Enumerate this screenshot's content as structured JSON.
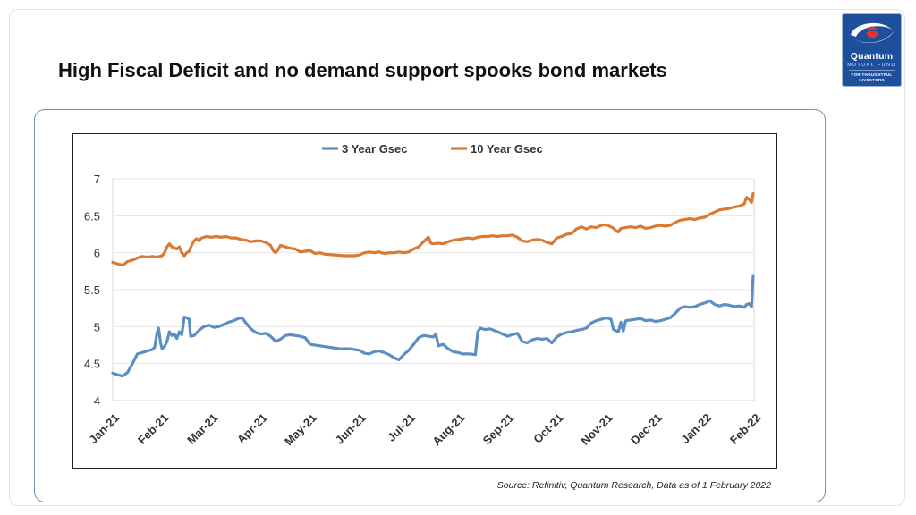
{
  "slide": {
    "title": "High Fiscal Deficit and no demand support spooks bond markets",
    "source": "Source: Refinitiv, Quantum Research, Data as of 1 February 2022"
  },
  "logo": {
    "name": "Quantum",
    "subtitle": "MUTUAL FUND",
    "tagline_line1": "FOR THOUGHTFUL",
    "tagline_line2": "INVESTORS",
    "colors": {
      "background": "#1e4f9c",
      "accent": "#e0352b"
    }
  },
  "chart_data": {
    "type": "line",
    "title": "",
    "xlabel": "",
    "ylabel": "",
    "ylim": [
      4,
      7
    ],
    "yticks": [
      "4",
      "4.5",
      "5",
      "5.5",
      "6",
      "6.5",
      "7"
    ],
    "grid": "horizontal",
    "legend_position": "top-center",
    "x_tick_labels": [
      "Jan-21",
      "Feb-21",
      "Mar-21",
      "Apr-21",
      "May-21",
      "Jun-21",
      "Jul-21",
      "Aug-21",
      "Sep-21",
      "Oct-21",
      "Nov-21",
      "Dec-21",
      "Jan-22",
      "Feb-22"
    ],
    "x_unit": "months since Jan-21",
    "series": [
      {
        "name": "3 Year Gsec",
        "color": "#5b8fc4",
        "points": [
          [
            0.0,
            4.37
          ],
          [
            0.1,
            4.35
          ],
          [
            0.2,
            4.33
          ],
          [
            0.3,
            4.38
          ],
          [
            0.4,
            4.5
          ],
          [
            0.5,
            4.63
          ],
          [
            0.6,
            4.65
          ],
          [
            0.7,
            4.67
          ],
          [
            0.8,
            4.69
          ],
          [
            0.85,
            4.72
          ],
          [
            0.9,
            4.92
          ],
          [
            0.93,
            4.98
          ],
          [
            0.97,
            4.78
          ],
          [
            1.0,
            4.7
          ],
          [
            1.05,
            4.73
          ],
          [
            1.1,
            4.8
          ],
          [
            1.15,
            4.93
          ],
          [
            1.2,
            4.88
          ],
          [
            1.25,
            4.9
          ],
          [
            1.3,
            4.84
          ],
          [
            1.35,
            4.93
          ],
          [
            1.4,
            4.89
          ],
          [
            1.45,
            5.13
          ],
          [
            1.5,
            5.12
          ],
          [
            1.55,
            5.1
          ],
          [
            1.58,
            4.87
          ],
          [
            1.65,
            4.88
          ],
          [
            1.75,
            4.95
          ],
          [
            1.85,
            5.0
          ],
          [
            1.95,
            5.02
          ],
          [
            2.05,
            4.99
          ],
          [
            2.15,
            5.0
          ],
          [
            2.25,
            5.03
          ],
          [
            2.35,
            5.06
          ],
          [
            2.45,
            5.08
          ],
          [
            2.55,
            5.11
          ],
          [
            2.62,
            5.12
          ],
          [
            2.7,
            5.05
          ],
          [
            2.8,
            4.97
          ],
          [
            2.9,
            4.92
          ],
          [
            3.0,
            4.9
          ],
          [
            3.1,
            4.91
          ],
          [
            3.2,
            4.87
          ],
          [
            3.3,
            4.8
          ],
          [
            3.4,
            4.83
          ],
          [
            3.5,
            4.88
          ],
          [
            3.6,
            4.89
          ],
          [
            3.7,
            4.88
          ],
          [
            3.8,
            4.87
          ],
          [
            3.9,
            4.85
          ],
          [
            4.0,
            4.76
          ],
          [
            4.2,
            4.74
          ],
          [
            4.4,
            4.72
          ],
          [
            4.6,
            4.7
          ],
          [
            4.8,
            4.7
          ],
          [
            5.0,
            4.68
          ],
          [
            5.1,
            4.64
          ],
          [
            5.2,
            4.63
          ],
          [
            5.3,
            4.66
          ],
          [
            5.4,
            4.67
          ],
          [
            5.5,
            4.65
          ],
          [
            5.6,
            4.62
          ],
          [
            5.7,
            4.58
          ],
          [
            5.8,
            4.55
          ],
          [
            5.9,
            4.62
          ],
          [
            6.0,
            4.68
          ],
          [
            6.1,
            4.76
          ],
          [
            6.2,
            4.85
          ],
          [
            6.3,
            4.88
          ],
          [
            6.4,
            4.87
          ],
          [
            6.5,
            4.86
          ],
          [
            6.55,
            4.9
          ],
          [
            6.6,
            4.74
          ],
          [
            6.7,
            4.76
          ],
          [
            6.8,
            4.7
          ],
          [
            6.9,
            4.66
          ],
          [
            7.0,
            4.65
          ],
          [
            7.1,
            4.63
          ],
          [
            7.25,
            4.63
          ],
          [
            7.35,
            4.62
          ],
          [
            7.4,
            4.93
          ],
          [
            7.45,
            4.98
          ],
          [
            7.55,
            4.96
          ],
          [
            7.65,
            4.97
          ],
          [
            7.8,
            4.93
          ],
          [
            7.9,
            4.9
          ],
          [
            8.0,
            4.87
          ],
          [
            8.1,
            4.89
          ],
          [
            8.2,
            4.91
          ],
          [
            8.3,
            4.8
          ],
          [
            8.4,
            4.78
          ],
          [
            8.5,
            4.82
          ],
          [
            8.6,
            4.84
          ],
          [
            8.7,
            4.83
          ],
          [
            8.8,
            4.84
          ],
          [
            8.9,
            4.78
          ],
          [
            9.0,
            4.86
          ],
          [
            9.1,
            4.9
          ],
          [
            9.2,
            4.92
          ],
          [
            9.3,
            4.93
          ],
          [
            9.4,
            4.95
          ],
          [
            9.5,
            4.96
          ],
          [
            9.6,
            4.98
          ],
          [
            9.7,
            5.05
          ],
          [
            9.8,
            5.08
          ],
          [
            9.9,
            5.1
          ],
          [
            10.0,
            5.12
          ],
          [
            10.1,
            5.1
          ],
          [
            10.15,
            4.96
          ],
          [
            10.25,
            4.93
          ],
          [
            10.3,
            5.06
          ],
          [
            10.35,
            4.94
          ],
          [
            10.4,
            5.08
          ],
          [
            10.5,
            5.09
          ],
          [
            10.6,
            5.1
          ],
          [
            10.7,
            5.11
          ],
          [
            10.8,
            5.08
          ],
          [
            10.9,
            5.09
          ],
          [
            11.0,
            5.07
          ],
          [
            11.1,
            5.08
          ],
          [
            11.2,
            5.1
          ],
          [
            11.3,
            5.12
          ],
          [
            11.4,
            5.18
          ],
          [
            11.5,
            5.25
          ],
          [
            11.6,
            5.27
          ],
          [
            11.7,
            5.26
          ],
          [
            11.8,
            5.27
          ],
          [
            11.9,
            5.3
          ],
          [
            12.0,
            5.32
          ],
          [
            12.1,
            5.35
          ],
          [
            12.2,
            5.3
          ],
          [
            12.3,
            5.28
          ],
          [
            12.4,
            5.3
          ],
          [
            12.5,
            5.29
          ],
          [
            12.6,
            5.27
          ],
          [
            12.7,
            5.28
          ],
          [
            12.8,
            5.26
          ],
          [
            12.85,
            5.3
          ],
          [
            12.9,
            5.31
          ],
          [
            12.95,
            5.27
          ],
          [
            12.98,
            5.68
          ]
        ]
      },
      {
        "name": "10 Year Gsec",
        "color": "#d97a33",
        "points": [
          [
            0.0,
            5.87
          ],
          [
            0.1,
            5.85
          ],
          [
            0.2,
            5.83
          ],
          [
            0.3,
            5.88
          ],
          [
            0.4,
            5.9
          ],
          [
            0.5,
            5.93
          ],
          [
            0.6,
            5.95
          ],
          [
            0.7,
            5.94
          ],
          [
            0.8,
            5.95
          ],
          [
            0.9,
            5.94
          ],
          [
            1.0,
            5.96
          ],
          [
            1.05,
            6.0
          ],
          [
            1.1,
            6.08
          ],
          [
            1.15,
            6.12
          ],
          [
            1.2,
            6.08
          ],
          [
            1.3,
            6.05
          ],
          [
            1.35,
            6.08
          ],
          [
            1.4,
            6.0
          ],
          [
            1.45,
            5.96
          ],
          [
            1.5,
            6.0
          ],
          [
            1.55,
            6.02
          ],
          [
            1.6,
            6.1
          ],
          [
            1.65,
            6.16
          ],
          [
            1.7,
            6.19
          ],
          [
            1.75,
            6.16
          ],
          [
            1.8,
            6.2
          ],
          [
            1.9,
            6.22
          ],
          [
            2.0,
            6.21
          ],
          [
            2.1,
            6.22
          ],
          [
            2.2,
            6.21
          ],
          [
            2.3,
            6.22
          ],
          [
            2.4,
            6.2
          ],
          [
            2.5,
            6.2
          ],
          [
            2.6,
            6.18
          ],
          [
            2.7,
            6.17
          ],
          [
            2.8,
            6.15
          ],
          [
            2.9,
            6.16
          ],
          [
            3.0,
            6.16
          ],
          [
            3.1,
            6.14
          ],
          [
            3.2,
            6.1
          ],
          [
            3.25,
            6.03
          ],
          [
            3.3,
            6.0
          ],
          [
            3.35,
            6.04
          ],
          [
            3.4,
            6.1
          ],
          [
            3.5,
            6.08
          ],
          [
            3.6,
            6.06
          ],
          [
            3.7,
            6.05
          ],
          [
            3.8,
            6.01
          ],
          [
            3.9,
            6.02
          ],
          [
            4.0,
            6.03
          ],
          [
            4.1,
            5.99
          ],
          [
            4.2,
            6.0
          ],
          [
            4.3,
            5.98
          ],
          [
            4.5,
            5.97
          ],
          [
            4.7,
            5.96
          ],
          [
            4.9,
            5.96
          ],
          [
            5.0,
            5.97
          ],
          [
            5.1,
            6.0
          ],
          [
            5.2,
            6.01
          ],
          [
            5.3,
            6.0
          ],
          [
            5.4,
            6.01
          ],
          [
            5.5,
            5.99
          ],
          [
            5.6,
            6.0
          ],
          [
            5.7,
            6.0
          ],
          [
            5.8,
            6.01
          ],
          [
            5.9,
            6.0
          ],
          [
            6.0,
            6.01
          ],
          [
            6.1,
            6.05
          ],
          [
            6.2,
            6.08
          ],
          [
            6.3,
            6.15
          ],
          [
            6.35,
            6.18
          ],
          [
            6.4,
            6.21
          ],
          [
            6.45,
            6.13
          ],
          [
            6.5,
            6.12
          ],
          [
            6.6,
            6.13
          ],
          [
            6.7,
            6.12
          ],
          [
            6.8,
            6.15
          ],
          [
            6.9,
            6.17
          ],
          [
            7.0,
            6.18
          ],
          [
            7.1,
            6.19
          ],
          [
            7.2,
            6.2
          ],
          [
            7.3,
            6.19
          ],
          [
            7.4,
            6.21
          ],
          [
            7.5,
            6.22
          ],
          [
            7.6,
            6.22
          ],
          [
            7.7,
            6.23
          ],
          [
            7.8,
            6.22
          ],
          [
            7.9,
            6.23
          ],
          [
            8.0,
            6.23
          ],
          [
            8.1,
            6.24
          ],
          [
            8.2,
            6.21
          ],
          [
            8.3,
            6.16
          ],
          [
            8.4,
            6.15
          ],
          [
            8.5,
            6.17
          ],
          [
            8.6,
            6.18
          ],
          [
            8.7,
            6.17
          ],
          [
            8.8,
            6.14
          ],
          [
            8.9,
            6.12
          ],
          [
            9.0,
            6.2
          ],
          [
            9.1,
            6.22
          ],
          [
            9.2,
            6.25
          ],
          [
            9.3,
            6.26
          ],
          [
            9.4,
            6.32
          ],
          [
            9.5,
            6.35
          ],
          [
            9.6,
            6.32
          ],
          [
            9.7,
            6.35
          ],
          [
            9.8,
            6.34
          ],
          [
            9.9,
            6.37
          ],
          [
            10.0,
            6.38
          ],
          [
            10.1,
            6.35
          ],
          [
            10.15,
            6.33
          ],
          [
            10.2,
            6.3
          ],
          [
            10.25,
            6.28
          ],
          [
            10.3,
            6.33
          ],
          [
            10.4,
            6.34
          ],
          [
            10.5,
            6.35
          ],
          [
            10.6,
            6.34
          ],
          [
            10.7,
            6.36
          ],
          [
            10.8,
            6.33
          ],
          [
            10.9,
            6.34
          ],
          [
            11.0,
            6.36
          ],
          [
            11.1,
            6.37
          ],
          [
            11.2,
            6.36
          ],
          [
            11.3,
            6.37
          ],
          [
            11.4,
            6.41
          ],
          [
            11.5,
            6.44
          ],
          [
            11.6,
            6.45
          ],
          [
            11.7,
            6.46
          ],
          [
            11.8,
            6.45
          ],
          [
            11.9,
            6.47
          ],
          [
            12.0,
            6.48
          ],
          [
            12.1,
            6.52
          ],
          [
            12.2,
            6.55
          ],
          [
            12.3,
            6.58
          ],
          [
            12.4,
            6.59
          ],
          [
            12.5,
            6.6
          ],
          [
            12.6,
            6.62
          ],
          [
            12.7,
            6.63
          ],
          [
            12.8,
            6.66
          ],
          [
            12.85,
            6.75
          ],
          [
            12.9,
            6.72
          ],
          [
            12.95,
            6.68
          ],
          [
            12.98,
            6.8
          ]
        ]
      }
    ]
  }
}
